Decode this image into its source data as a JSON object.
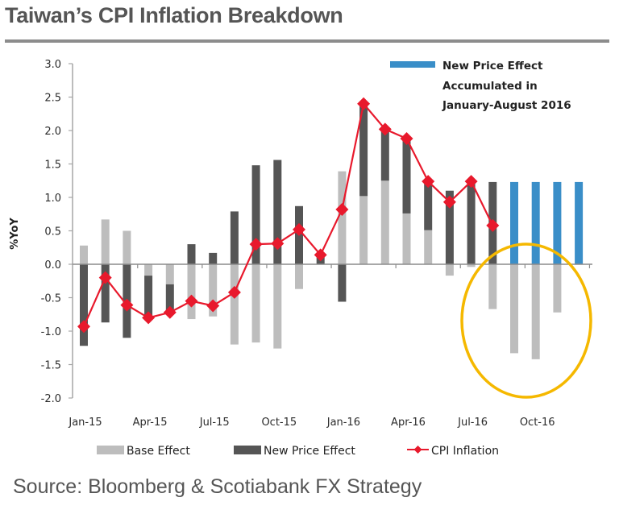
{
  "header": {
    "title": "Taiwan’s CPI Inflation Breakdown"
  },
  "footer": {
    "source": "Source: Bloomberg & Scotiabank FX Strategy"
  },
  "chart_data": {
    "type": "bar",
    "subtype": "stacked bar with line overlay",
    "title": "Taiwan’s CPI Inflation Breakdown",
    "xlabel": "",
    "ylabel": "%YoY",
    "ylim": [
      -2.0,
      3.0
    ],
    "yticks": [
      3.0,
      2.5,
      2.0,
      1.5,
      1.0,
      0.5,
      0.0,
      -0.5,
      -1.0,
      -1.5,
      -2.0
    ],
    "ytick_labels": [
      "3.0",
      "2.5",
      "2.0",
      "1.5",
      "1.0",
      "0.5",
      "0.0",
      "-0.5",
      "-1.0",
      "-1.5",
      "-2.0"
    ],
    "grid": false,
    "categories": [
      "Jan-15",
      "Feb-15",
      "Mar-15",
      "Apr-15",
      "May-15",
      "Jun-15",
      "Jul-15",
      "Aug-15",
      "Sep-15",
      "Oct-15",
      "Nov-15",
      "Dec-15",
      "Jan-16",
      "Feb-16",
      "Mar-16",
      "Apr-16",
      "May-16",
      "Jun-16",
      "Jul-16",
      "Aug-16",
      "Sep-16",
      "Oct-16",
      "Nov-16",
      "Dec-16"
    ],
    "xtick_labels": [
      "Jan-15",
      "Apr-15",
      "Jul-15",
      "Oct-15",
      "Jan-16",
      "Apr-16",
      "Jul-16",
      "Oct-16"
    ],
    "xtick_label_indices": [
      0,
      3,
      6,
      9,
      12,
      15,
      18,
      21
    ],
    "series": [
      {
        "name": "Base Effect",
        "kind": "bar",
        "color": "#bdbdbd",
        "values": [
          0.28,
          0.67,
          0.5,
          -0.17,
          -0.3,
          -0.82,
          -0.78,
          -1.2,
          -1.17,
          -1.26,
          -0.37,
          0.0,
          1.39,
          1.02,
          1.25,
          0.76,
          0.51,
          -0.17,
          -0.04,
          -0.67,
          -1.33,
          -1.42,
          -0.72,
          0.0
        ]
      },
      {
        "name": "New Price Effect",
        "kind": "bar",
        "color": "#555555",
        "values": [
          -1.22,
          -0.87,
          -1.1,
          -0.63,
          -0.42,
          0.3,
          0.17,
          0.79,
          1.48,
          1.56,
          0.87,
          0.14,
          -0.56,
          1.38,
          0.77,
          1.12,
          0.73,
          1.1,
          1.23,
          1.23,
          null,
          null,
          null,
          null
        ]
      },
      {
        "name": "New Price Effect Accumulated in January-August 2016",
        "kind": "bar",
        "color": "#3a8ec8",
        "values": [
          null,
          null,
          null,
          null,
          null,
          null,
          null,
          null,
          null,
          null,
          null,
          null,
          null,
          null,
          null,
          null,
          null,
          null,
          null,
          null,
          1.23,
          1.23,
          1.23,
          1.23
        ]
      },
      {
        "name": "CPI Inflation",
        "kind": "line",
        "marker": "diamond",
        "color": "#e8192c",
        "values": [
          -0.93,
          -0.2,
          -0.61,
          -0.8,
          -0.72,
          -0.55,
          -0.62,
          -0.42,
          0.3,
          0.31,
          0.52,
          0.14,
          0.82,
          2.4,
          2.02,
          1.88,
          1.24,
          0.93,
          1.24,
          0.58,
          null,
          null,
          null,
          null
        ]
      }
    ],
    "legend": {
      "placement": "bottom",
      "entries": [
        {
          "label": "Base Effect",
          "color": "#bdbdbd",
          "kind": "bar"
        },
        {
          "label": "New Price Effect",
          "color": "#555555",
          "kind": "bar"
        },
        {
          "label": "CPI Inflation",
          "color": "#e8192c",
          "kind": "line"
        }
      ]
    },
    "annotations": [
      {
        "kind": "legend-note",
        "placement": "top-right",
        "color": "#3a8ec8",
        "lines": [
          "New Price Effect",
          "Accumulated in",
          "January-August 2016"
        ]
      },
      {
        "kind": "highlight-ellipse",
        "color": "#f5b800",
        "covers_categories": [
          "Aug-16",
          "Sep-16",
          "Oct-16",
          "Nov-16",
          "Dec-16"
        ]
      }
    ]
  }
}
